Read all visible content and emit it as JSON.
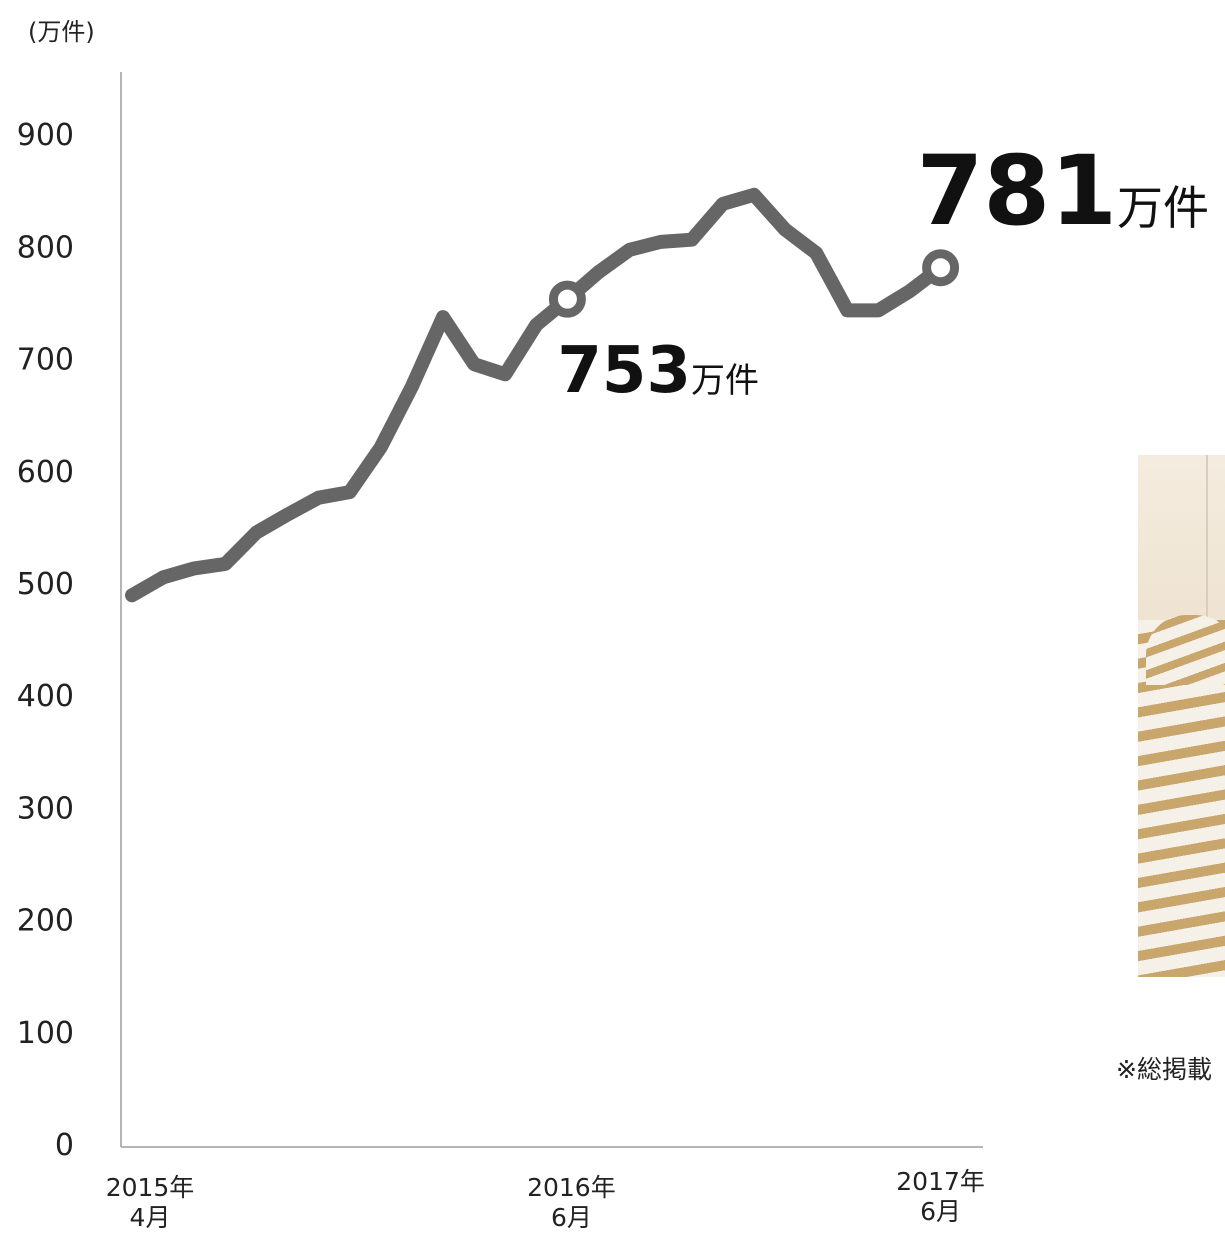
{
  "unit_label": "(万件)",
  "chart_data": {
    "type": "line",
    "ylim": [
      0,
      950
    ],
    "y_ticks": [
      0,
      100,
      200,
      300,
      400,
      500,
      600,
      700,
      800,
      900
    ],
    "x_tick_labels": [
      {
        "year": "2015年",
        "month": "4月",
        "index": 0
      },
      {
        "year": "2016年",
        "month": "6月",
        "index": 14
      },
      {
        "year": "2017年",
        "month": "6月",
        "index": 26
      }
    ],
    "series": [
      {
        "values": [
          489,
          505,
          513,
          517,
          545,
          561,
          576,
          581,
          621,
          675,
          737,
          695,
          686,
          730,
          753,
          777,
          797,
          804,
          806,
          838,
          846,
          815,
          794,
          743,
          743,
          760,
          781
        ]
      }
    ],
    "line_color": "#666666",
    "annotations": [
      {
        "index": 14,
        "value_text": "753",
        "unit": "万件"
      },
      {
        "index": 26,
        "value_text": "781",
        "unit": "万件"
      }
    ]
  },
  "footnote": "※総掲載"
}
